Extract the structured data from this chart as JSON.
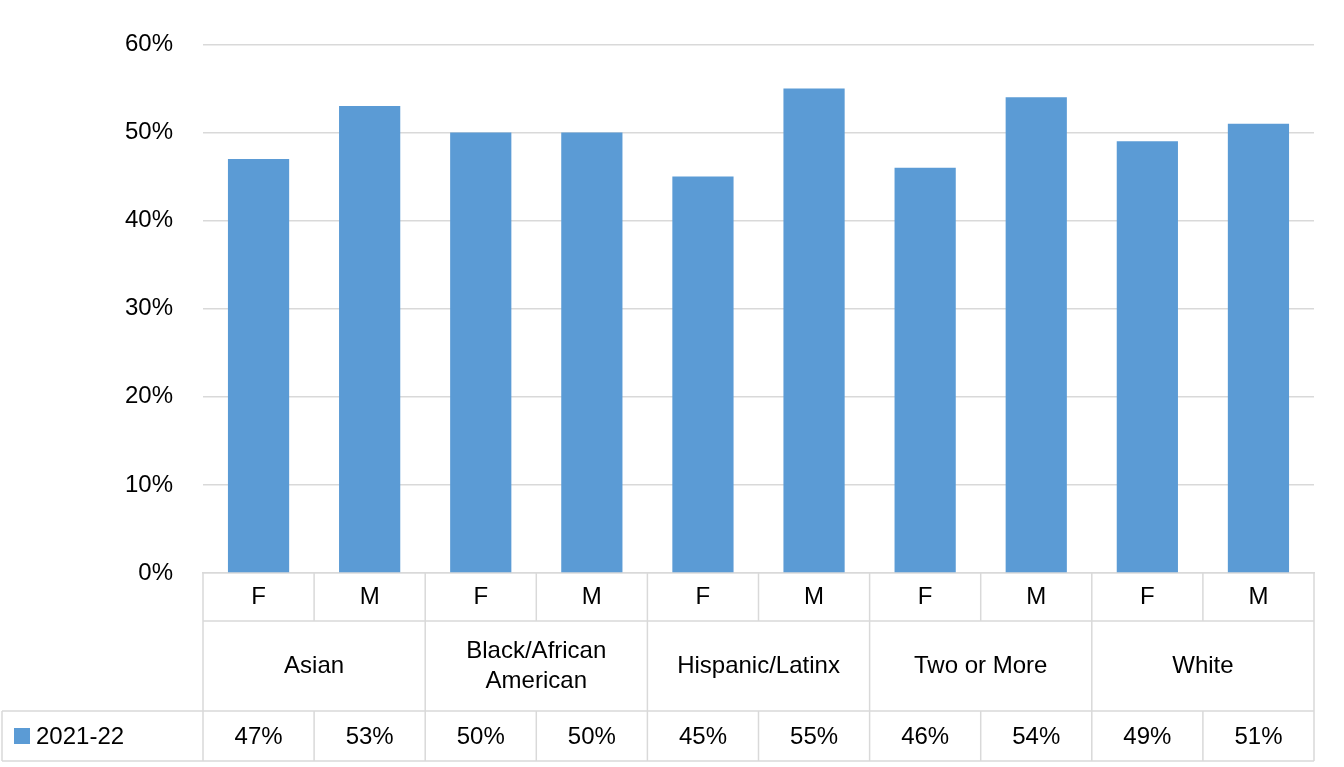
{
  "chart_data": {
    "type": "bar",
    "categories": [
      "F",
      "M",
      "F",
      "M",
      "F",
      "M",
      "F",
      "M",
      "F",
      "M"
    ],
    "series": [
      {
        "name": "2021-22",
        "color": "#5b9bd5",
        "values": [
          47,
          53,
          50,
          50,
          45,
          55,
          46,
          54,
          49,
          51
        ],
        "value_labels": [
          "47%",
          "53%",
          "50%",
          "50%",
          "45%",
          "55%",
          "46%",
          "54%",
          "49%",
          "51%"
        ]
      }
    ],
    "annotations": [
      "Asian",
      "Black/African American",
      "Hispanic/Latinx",
      "Two or More",
      "White"
    ],
    "ylim": [
      0,
      60
    ],
    "yticks": [
      {
        "value": 0,
        "label": "0%"
      },
      {
        "value": 10,
        "label": "10%"
      },
      {
        "value": 20,
        "label": "20%"
      },
      {
        "value": 30,
        "label": "30%"
      },
      {
        "value": 40,
        "label": "40%"
      },
      {
        "value": 50,
        "label": "50%"
      },
      {
        "value": 60,
        "label": "60%"
      }
    ],
    "grid": "y",
    "legend": "bottom"
  }
}
